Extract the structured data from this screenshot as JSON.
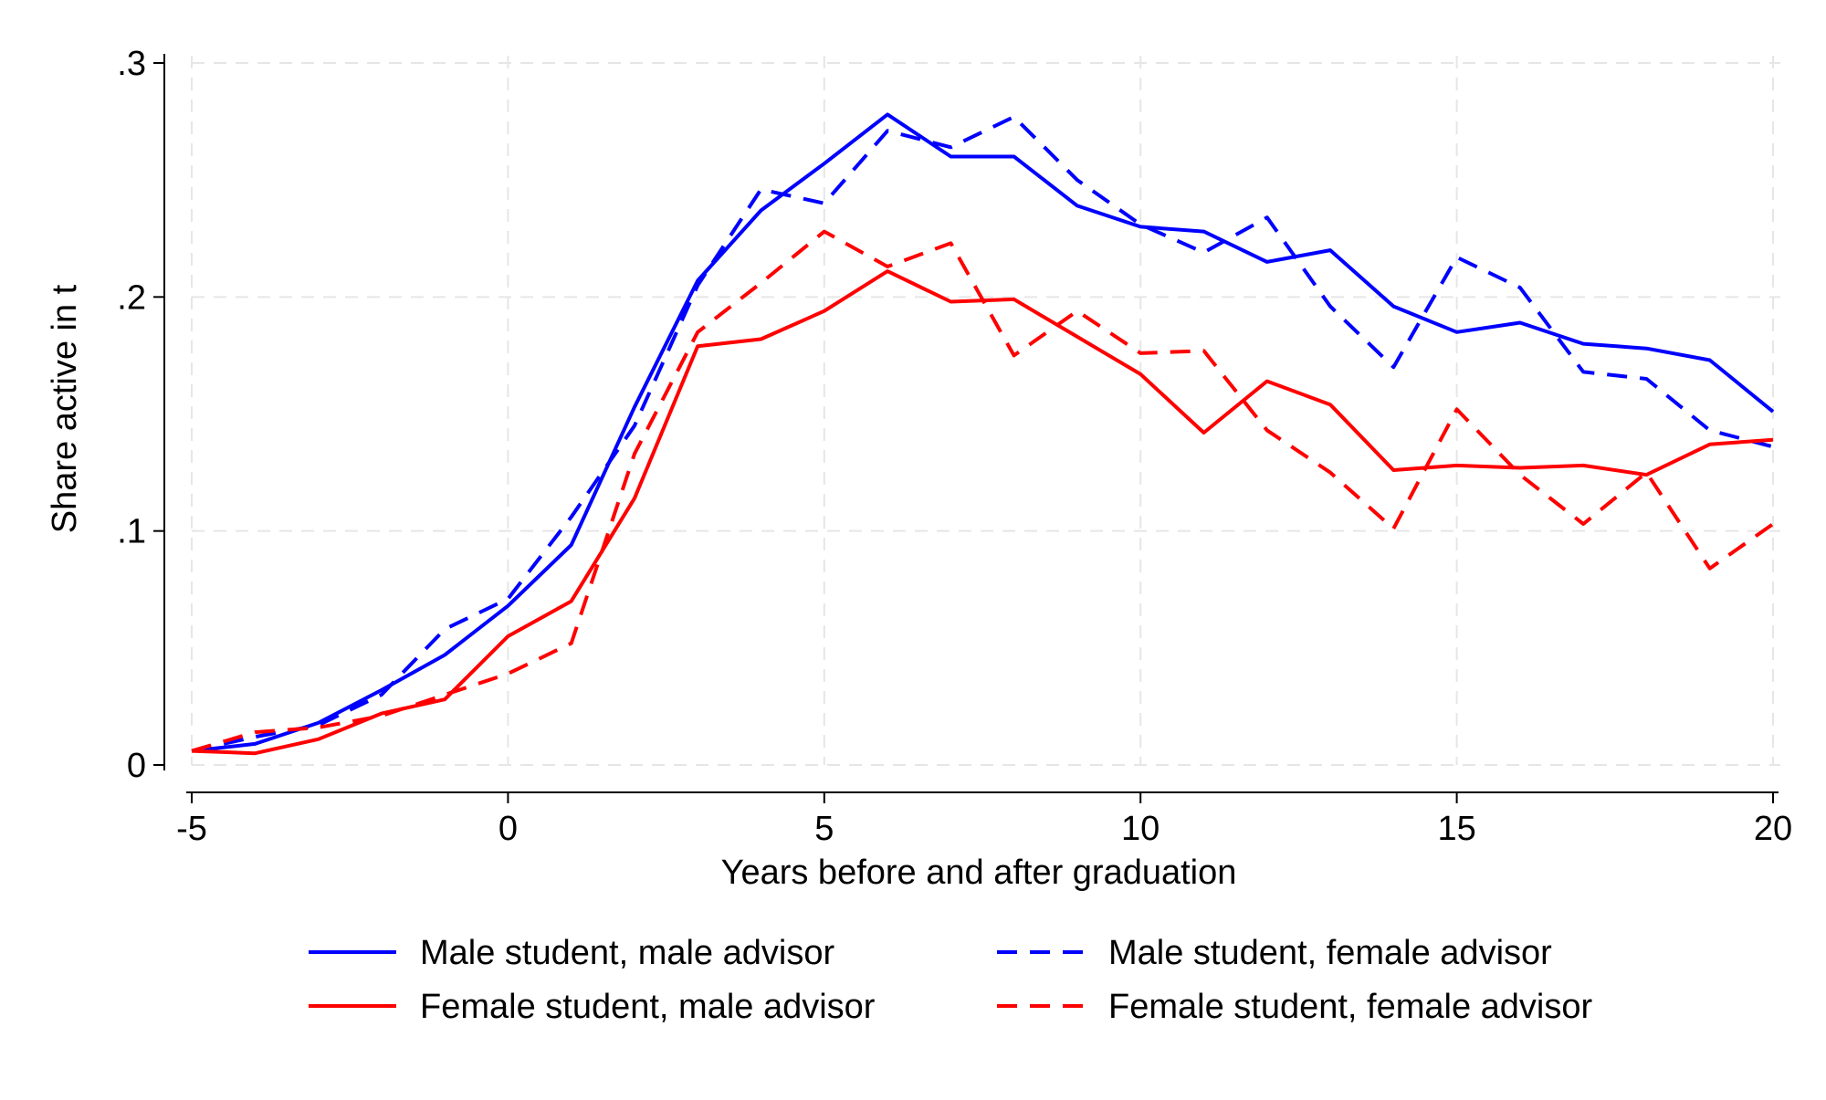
{
  "chart_data": {
    "type": "line",
    "title": "",
    "xlabel": "Years before and after graduation",
    "ylabel": "Share active in t",
    "xlim": [
      -5,
      20
    ],
    "ylim": [
      0,
      0.3
    ],
    "x_ticks": [
      -5,
      0,
      5,
      10,
      15,
      20
    ],
    "x_tick_labels": [
      "-5",
      "0",
      "5",
      "10",
      "15",
      "20"
    ],
    "y_ticks": [
      0,
      0.1,
      0.2,
      0.3
    ],
    "y_tick_labels": [
      "0",
      ".1",
      ".2",
      ".3"
    ],
    "grid": true,
    "legend_position": "bottom",
    "x": [
      -5,
      -4,
      -3,
      -2,
      -1,
      0,
      1,
      2,
      3,
      4,
      5,
      6,
      7,
      8,
      9,
      10,
      11,
      12,
      13,
      14,
      15,
      16,
      17,
      18,
      19,
      20
    ],
    "series": [
      {
        "name": "Male student, male advisor",
        "color": "#0000ff",
        "dash": "solid",
        "values": [
          0.006,
          0.009,
          0.018,
          0.032,
          0.047,
          0.068,
          0.094,
          0.153,
          0.207,
          0.237,
          0.257,
          0.278,
          0.26,
          0.26,
          0.239,
          0.23,
          0.228,
          0.215,
          0.22,
          0.196,
          0.185,
          0.189,
          0.18,
          0.178,
          0.173,
          0.151
        ]
      },
      {
        "name": "Male student, female advisor",
        "color": "#0000ff",
        "dash": "dashed",
        "values": [
          0.006,
          0.012,
          0.017,
          0.03,
          0.058,
          0.071,
          0.106,
          0.145,
          0.205,
          0.246,
          0.24,
          0.271,
          0.264,
          0.277,
          0.25,
          0.231,
          0.219,
          0.234,
          0.196,
          0.17,
          0.217,
          0.204,
          0.168,
          0.165,
          0.143,
          0.136
        ]
      },
      {
        "name": "Female student, male advisor",
        "color": "#ff0000",
        "dash": "solid",
        "values": [
          0.006,
          0.005,
          0.011,
          0.022,
          0.028,
          0.055,
          0.07,
          0.114,
          0.179,
          0.182,
          0.194,
          0.211,
          0.198,
          0.199,
          0.183,
          0.167,
          0.142,
          0.164,
          0.154,
          0.126,
          0.128,
          0.127,
          0.128,
          0.124,
          0.137,
          0.139
        ]
      },
      {
        "name": "Female student, female advisor",
        "color": "#ff0000",
        "dash": "dashed",
        "values": [
          0.006,
          0.014,
          0.016,
          0.021,
          0.03,
          0.039,
          0.052,
          0.133,
          0.185,
          0.206,
          0.228,
          0.213,
          0.223,
          0.175,
          0.194,
          0.176,
          0.177,
          0.143,
          0.125,
          0.101,
          0.152,
          0.124,
          0.103,
          0.125,
          0.084,
          0.103
        ]
      }
    ]
  }
}
